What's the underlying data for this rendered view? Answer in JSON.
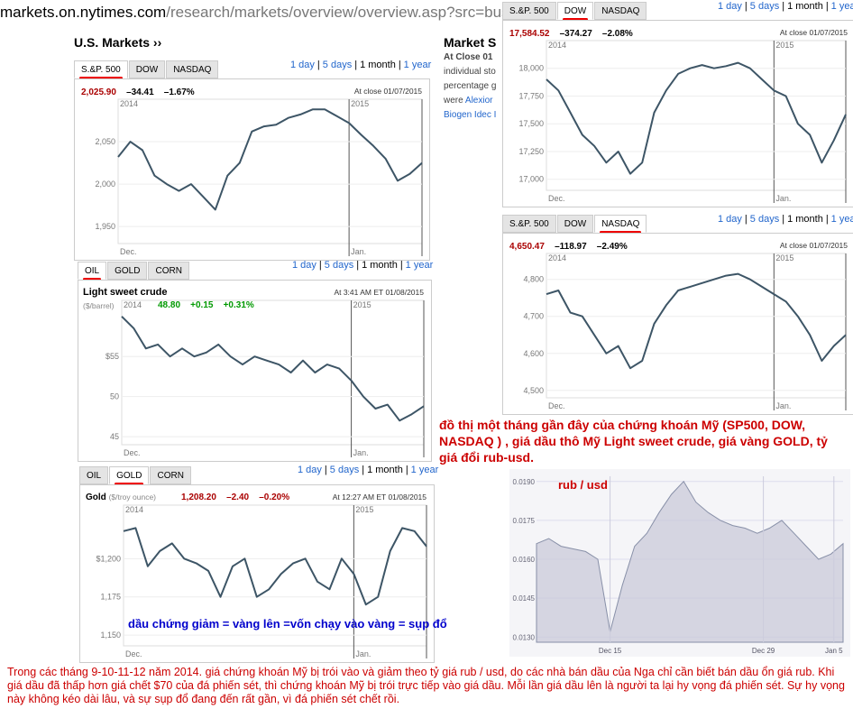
{
  "url": {
    "host": "markets.on.nytimes.com",
    "path": "/research/markets/overview/overview.asp?src=busfn"
  },
  "section_title": "U.S. Markets ››",
  "side": {
    "title": "Market S",
    "line1": "At Close 01",
    "line2": "individual sto",
    "line3": "percentage g",
    "line4a": "were ",
    "line4b": "Alexior",
    "line5": "Biogen Idec I"
  },
  "ranges": [
    "1 day",
    "5 days",
    "1 month",
    "1 year"
  ],
  "current_range": "1 month",
  "index_tabs": [
    "S.&P. 500",
    "DOW",
    "NASDAQ"
  ],
  "commod_tabs": [
    "OIL",
    "GOLD",
    "CORN"
  ],
  "labels": {
    "close": "At close 01/07/2015",
    "oil_ts": "At 3:41 AM ET 01/08/2015",
    "gold_ts": "At 12:27 AM ET 01/08/2015",
    "yr2014": "2014",
    "yr2015": "2015",
    "dec": "Dec.",
    "jan": "Jan.",
    "dec15": "Dec 15",
    "dec29": "Dec 29",
    "jan5": "Jan 5"
  },
  "sp500": {
    "last": "2,025.90",
    "chg": "–34.41",
    "pct": "–1.67%"
  },
  "dow": {
    "last": "17,584.52",
    "chg": "–374.27",
    "pct": "–2.08%"
  },
  "nasdaq": {
    "last": "4,650.47",
    "chg": "–118.97",
    "pct": "–2.49%"
  },
  "oil": {
    "name": "Light sweet crude",
    "unit": "($/barrel)",
    "last": "48.80",
    "chg": "+0.15",
    "pct": "+0.31%"
  },
  "gold": {
    "name": "Gold",
    "unit": "($/troy ounce)",
    "last": "1,208.20",
    "chg": "–2.40",
    "pct": "–0.20%"
  },
  "rub_label": "rub / usd",
  "note": "đồ thị một tháng gần đây của chứng khoán Mỹ (SP500, DOW, NASDAQ ) , giá dầu thô Mỹ Light sweet crude, giá vàng GOLD, tỷ giá đổi rub-usd.",
  "blue_note": "dầu chứng giảm = vàng lên =vốn chạy vào vàng = sụp đổ",
  "bottom_note": "Trong các tháng 9-10-11-12 năm 2014. giá chứng khoán Mỹ  bị trói vào và giảm theo tỷ giá rub / usd, do các nhà bán dầu của Nga chỉ cần biết bán dầu ổn giá rub. Khi giá dầu đã thấp hơn giá chết $70 của đá phiến sét, thì chứng khoán Mỹ bị trói trực tiếp vào giá dầu. Mỗi lần giá dầu lên là người ta lại hy vọng đá phiến sét. Sự hy vọng này không kéo dài lâu, và sự sụp đổ đang đến rất gần, vì đá phiến sét chết rồi.",
  "colors": {
    "line": "#3d5566",
    "red": "#cc0000",
    "green": "#009900",
    "link": "#2266cc",
    "area": "#c9c9d9"
  },
  "chart_data": [
    {
      "type": "line",
      "name_printed": "S.&P. 500",
      "ylim": [
        1930,
        2100
      ],
      "yticks": [
        1950,
        2000,
        2050
      ],
      "ytick_labels": [
        "1,950",
        "2,000",
        "2,050"
      ],
      "x": [
        0,
        1,
        2,
        3,
        4,
        5,
        6,
        7,
        8,
        9,
        10,
        11,
        12,
        13,
        14,
        15,
        16,
        17,
        18,
        19,
        20,
        21,
        22,
        23,
        24,
        25
      ],
      "values": [
        2032,
        2050,
        2040,
        2010,
        2000,
        1992,
        2000,
        1985,
        1970,
        2010,
        2025,
        2062,
        2068,
        2070,
        2078,
        2082,
        2088,
        2088,
        2080,
        2072,
        2058,
        2045,
        2030,
        2004,
        2012,
        2025
      ]
    },
    {
      "type": "line",
      "name_printed": "DOW",
      "ylim": [
        16900,
        18250
      ],
      "yticks": [
        17000,
        17250,
        17500,
        17750,
        18000
      ],
      "ytick_labels": [
        "17,000",
        "17,250",
        "17,500",
        "17,750",
        "18,000"
      ],
      "values": [
        17900,
        17800,
        17600,
        17400,
        17300,
        17150,
        17250,
        17050,
        17150,
        17600,
        17800,
        17950,
        18000,
        18030,
        18000,
        18020,
        18050,
        18000,
        17900,
        17800,
        17750,
        17500,
        17400,
        17150,
        17350,
        17584
      ]
    },
    {
      "type": "line",
      "name_printed": "NASDAQ",
      "ylim": [
        4480,
        4870
      ],
      "yticks": [
        4500,
        4600,
        4700,
        4800
      ],
      "ytick_labels": [
        "4,500",
        "4,600",
        "4,700",
        "4,800"
      ],
      "values": [
        4760,
        4770,
        4710,
        4700,
        4650,
        4600,
        4620,
        4560,
        4580,
        4680,
        4730,
        4770,
        4780,
        4790,
        4800,
        4810,
        4815,
        4800,
        4780,
        4760,
        4740,
        4700,
        4650,
        4580,
        4620,
        4650
      ]
    },
    {
      "type": "line",
      "name_printed": "Light sweet crude",
      "ylim": [
        44,
        62
      ],
      "yticks": [
        45,
        50,
        55
      ],
      "ytick_labels": [
        "45",
        "50",
        "$55"
      ],
      "values": [
        60,
        58.5,
        56,
        56.5,
        55,
        56,
        55,
        55.5,
        56.5,
        55,
        54,
        55,
        54.5,
        54,
        53,
        54.5,
        53,
        54,
        53.5,
        52,
        50,
        48.5,
        49,
        47,
        47.8,
        48.8
      ]
    },
    {
      "type": "line",
      "name_printed": "Gold",
      "ylim": [
        1143,
        1235
      ],
      "yticks": [
        1150,
        1175,
        1200
      ],
      "ytick_labels": [
        "1,150",
        "1,175",
        "$1,200"
      ],
      "values": [
        1218,
        1220,
        1195,
        1205,
        1210,
        1200,
        1197,
        1192,
        1175,
        1195,
        1200,
        1175,
        1180,
        1190,
        1197,
        1200,
        1185,
        1180,
        1200,
        1190,
        1170,
        1175,
        1205,
        1220,
        1218,
        1208
      ]
    },
    {
      "type": "area",
      "name_printed": "rub / usd",
      "ylim": [
        0.0128,
        0.0192
      ],
      "yticks": [
        0.013,
        0.0145,
        0.016,
        0.0175,
        0.019
      ],
      "ytick_labels": [
        "0.0130",
        "0.0145",
        "0.0160",
        "0.0175",
        "0.0190"
      ],
      "values": [
        0.0166,
        0.0168,
        0.0165,
        0.0164,
        0.0163,
        0.016,
        0.0132,
        0.015,
        0.0165,
        0.017,
        0.0178,
        0.0185,
        0.019,
        0.0182,
        0.0178,
        0.0175,
        0.0173,
        0.0172,
        0.017,
        0.0172,
        0.0175,
        0.017,
        0.0165,
        0.016,
        0.0162,
        0.0166
      ]
    }
  ]
}
